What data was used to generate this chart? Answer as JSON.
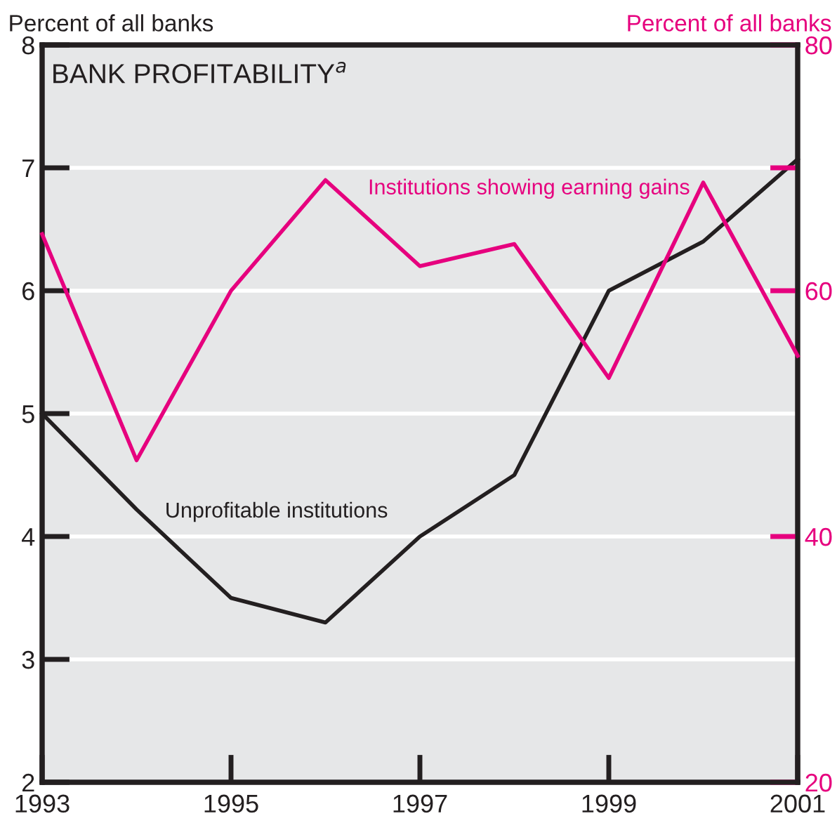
{
  "chart_data": {
    "type": "line",
    "title": "BANK PROFITABILITY$^{a}$",
    "ylabel": "Percent of all banks",
    "y2label": "Percent of all banks",
    "x": [
      1993,
      1994,
      1995,
      1996,
      1997,
      1998,
      1999,
      2000,
      2001
    ],
    "series": [
      {
        "name": "Unprofitable institutions",
        "color": "#231f20",
        "values": [
          5.0,
          4.22,
          3.5,
          3.3,
          4.0,
          4.5,
          6.0,
          6.4,
          7.07
        ]
      },
      {
        "name": "Institutions showing earning gains",
        "color": "#e6007e",
        "axis": "y2",
        "values": [
          64.6,
          46.2,
          60,
          69,
          62,
          63.8,
          52.9,
          68.8,
          54.7
        ]
      }
    ],
    "xlim": [
      1993,
      2001
    ],
    "xticks": [
      1993,
      1995,
      1997,
      1999,
      2001
    ],
    "ylim": [
      2,
      8
    ],
    "yticks": [
      2,
      3,
      4,
      5,
      6,
      7,
      8
    ],
    "y2lim": [
      20,
      80
    ],
    "y2ticks": [
      20,
      {
        "value": 40,
        "label": "40"
      },
      {
        "value": 60,
        "label": "60"
      },
      {
        "value": 70,
        "label": null
      },
      80
    ],
    "grid": "y",
    "legend": false
  }
}
